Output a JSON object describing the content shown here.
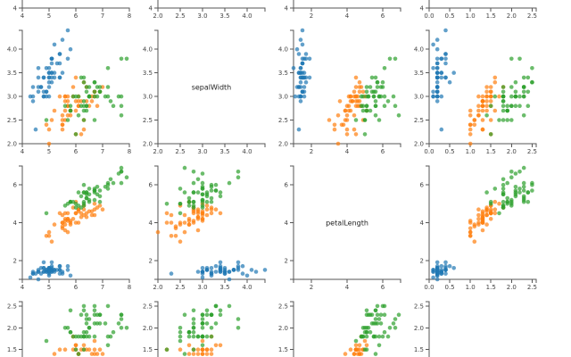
{
  "chart_data": {
    "type": "scatter",
    "title": "",
    "layout": "scatterplot-matrix",
    "grid": false,
    "legend": "none",
    "diagonal_labels": [
      "",
      "sepalWidth",
      "petalLength",
      ""
    ],
    "dimensions": [
      {
        "domain": [
          4,
          8
        ],
        "ticks": [
          4,
          5,
          6,
          7,
          8
        ],
        "tick_labels": [
          "4",
          "5",
          "6",
          "7",
          "8"
        ]
      },
      {
        "domain": [
          2.0,
          4.4
        ],
        "ticks": [
          2.0,
          2.5,
          3.0,
          3.5,
          4.0
        ],
        "tick_labels": [
          "2.0",
          "2.5",
          "3.0",
          "3.5",
          "4.0"
        ]
      },
      {
        "domain": [
          1,
          7
        ],
        "ticks": [
          2,
          4,
          6
        ],
        "tick_labels": [
          "2",
          "4",
          "6"
        ]
      },
      {
        "domain": [
          0,
          2.6
        ],
        "ticks": [
          0.0,
          0.5,
          1.0,
          1.5,
          2.0,
          2.5
        ],
        "tick_labels": [
          "0.0",
          "0.5",
          "1.0",
          "1.5",
          "2.0",
          "2.5"
        ]
      }
    ],
    "series": [
      {
        "color": "#1f77b4",
        "points": [
          [
            5.1,
            3.5,
            1.4,
            0.2
          ],
          [
            4.9,
            3.0,
            1.4,
            0.2
          ],
          [
            4.7,
            3.2,
            1.3,
            0.2
          ],
          [
            4.6,
            3.1,
            1.5,
            0.2
          ],
          [
            5.0,
            3.6,
            1.4,
            0.2
          ],
          [
            5.4,
            3.9,
            1.7,
            0.4
          ],
          [
            4.6,
            3.4,
            1.4,
            0.3
          ],
          [
            5.0,
            3.4,
            1.5,
            0.2
          ],
          [
            4.4,
            2.9,
            1.4,
            0.2
          ],
          [
            4.9,
            3.1,
            1.5,
            0.1
          ],
          [
            5.4,
            3.7,
            1.5,
            0.2
          ],
          [
            4.8,
            3.4,
            1.6,
            0.2
          ],
          [
            4.8,
            3.0,
            1.4,
            0.1
          ],
          [
            4.3,
            3.0,
            1.1,
            0.1
          ],
          [
            5.8,
            4.0,
            1.2,
            0.2
          ],
          [
            5.7,
            4.4,
            1.5,
            0.4
          ],
          [
            5.4,
            3.9,
            1.3,
            0.4
          ],
          [
            5.1,
            3.5,
            1.4,
            0.3
          ],
          [
            5.7,
            3.8,
            1.7,
            0.3
          ],
          [
            5.1,
            3.8,
            1.5,
            0.3
          ],
          [
            5.4,
            3.4,
            1.7,
            0.2
          ],
          [
            5.1,
            3.7,
            1.5,
            0.4
          ],
          [
            4.6,
            3.6,
            1.0,
            0.2
          ],
          [
            5.1,
            3.3,
            1.7,
            0.5
          ],
          [
            4.8,
            3.4,
            1.9,
            0.2
          ],
          [
            5.0,
            3.0,
            1.6,
            0.2
          ],
          [
            5.0,
            3.4,
            1.6,
            0.4
          ],
          [
            5.2,
            3.5,
            1.5,
            0.2
          ],
          [
            5.2,
            3.4,
            1.4,
            0.2
          ],
          [
            4.7,
            3.2,
            1.6,
            0.2
          ],
          [
            4.8,
            3.1,
            1.6,
            0.2
          ],
          [
            5.4,
            3.4,
            1.5,
            0.4
          ],
          [
            5.2,
            4.1,
            1.5,
            0.1
          ],
          [
            5.5,
            4.2,
            1.4,
            0.2
          ],
          [
            4.9,
            3.1,
            1.5,
            0.2
          ],
          [
            5.0,
            3.2,
            1.2,
            0.2
          ],
          [
            5.5,
            3.5,
            1.3,
            0.2
          ],
          [
            4.9,
            3.6,
            1.4,
            0.1
          ],
          [
            4.4,
            3.0,
            1.3,
            0.2
          ],
          [
            5.1,
            3.4,
            1.5,
            0.2
          ],
          [
            5.0,
            3.5,
            1.3,
            0.3
          ],
          [
            4.5,
            2.3,
            1.3,
            0.3
          ],
          [
            4.4,
            3.2,
            1.3,
            0.2
          ],
          [
            5.0,
            3.5,
            1.6,
            0.6
          ],
          [
            5.1,
            3.8,
            1.9,
            0.4
          ],
          [
            4.8,
            3.0,
            1.4,
            0.3
          ],
          [
            5.1,
            3.8,
            1.6,
            0.2
          ],
          [
            4.6,
            3.2,
            1.4,
            0.2
          ],
          [
            5.3,
            3.7,
            1.5,
            0.2
          ],
          [
            5.0,
            3.3,
            1.4,
            0.2
          ]
        ]
      },
      {
        "color": "#ff7f0e",
        "points": [
          [
            7.0,
            3.2,
            4.7,
            1.4
          ],
          [
            6.4,
            3.2,
            4.5,
            1.5
          ],
          [
            6.9,
            3.1,
            4.9,
            1.5
          ],
          [
            5.5,
            2.3,
            4.0,
            1.3
          ],
          [
            6.5,
            2.8,
            4.6,
            1.5
          ],
          [
            5.7,
            2.8,
            4.5,
            1.3
          ],
          [
            6.3,
            3.3,
            4.7,
            1.6
          ],
          [
            4.9,
            2.4,
            3.3,
            1.0
          ],
          [
            6.6,
            2.9,
            4.6,
            1.3
          ],
          [
            5.2,
            2.7,
            3.9,
            1.4
          ],
          [
            5.0,
            2.0,
            3.5,
            1.0
          ],
          [
            5.9,
            3.0,
            4.2,
            1.5
          ],
          [
            6.0,
            2.2,
            4.0,
            1.0
          ],
          [
            6.1,
            2.9,
            4.7,
            1.4
          ],
          [
            5.6,
            2.9,
            3.6,
            1.3
          ],
          [
            6.7,
            3.1,
            4.4,
            1.4
          ],
          [
            5.6,
            3.0,
            4.5,
            1.5
          ],
          [
            5.8,
            2.7,
            4.1,
            1.0
          ],
          [
            6.2,
            2.2,
            4.5,
            1.5
          ],
          [
            5.6,
            2.5,
            3.9,
            1.1
          ],
          [
            5.9,
            3.2,
            4.8,
            1.8
          ],
          [
            6.1,
            2.8,
            4.0,
            1.3
          ],
          [
            6.3,
            2.5,
            4.9,
            1.5
          ],
          [
            6.1,
            2.8,
            4.7,
            1.2
          ],
          [
            6.4,
            2.9,
            4.3,
            1.3
          ],
          [
            6.6,
            3.0,
            4.4,
            1.4
          ],
          [
            6.8,
            2.8,
            4.8,
            1.4
          ],
          [
            6.7,
            3.0,
            5.0,
            1.7
          ],
          [
            6.0,
            2.9,
            4.5,
            1.5
          ],
          [
            5.7,
            2.6,
            3.5,
            1.0
          ],
          [
            5.5,
            2.4,
            3.8,
            1.1
          ],
          [
            5.5,
            2.4,
            3.7,
            1.0
          ],
          [
            5.8,
            2.7,
            3.9,
            1.2
          ],
          [
            6.0,
            2.7,
            5.1,
            1.6
          ],
          [
            5.4,
            3.0,
            4.5,
            1.5
          ],
          [
            6.0,
            3.4,
            4.5,
            1.6
          ],
          [
            6.7,
            3.1,
            4.7,
            1.5
          ],
          [
            6.3,
            2.3,
            4.4,
            1.3
          ],
          [
            5.6,
            3.0,
            4.1,
            1.3
          ],
          [
            5.5,
            2.5,
            4.0,
            1.3
          ],
          [
            5.5,
            2.6,
            4.4,
            1.2
          ],
          [
            6.1,
            3.0,
            4.6,
            1.4
          ],
          [
            5.8,
            2.6,
            4.0,
            1.2
          ],
          [
            5.0,
            2.3,
            3.3,
            1.0
          ],
          [
            5.6,
            2.7,
            4.2,
            1.3
          ],
          [
            5.7,
            3.0,
            4.2,
            1.2
          ],
          [
            5.7,
            2.9,
            4.2,
            1.3
          ],
          [
            6.2,
            2.9,
            4.3,
            1.3
          ],
          [
            5.1,
            2.5,
            3.0,
            1.1
          ],
          [
            5.7,
            2.8,
            4.1,
            1.3
          ]
        ]
      },
      {
        "color": "#2ca02c",
        "points": [
          [
            6.3,
            3.3,
            6.0,
            2.5
          ],
          [
            5.8,
            2.7,
            5.1,
            1.9
          ],
          [
            7.1,
            3.0,
            5.9,
            2.1
          ],
          [
            6.3,
            2.9,
            5.6,
            1.8
          ],
          [
            6.5,
            3.0,
            5.8,
            2.2
          ],
          [
            7.6,
            3.0,
            6.6,
            2.1
          ],
          [
            4.9,
            2.5,
            4.5,
            1.7
          ],
          [
            7.3,
            2.9,
            6.3,
            1.8
          ],
          [
            6.7,
            2.5,
            5.8,
            1.8
          ],
          [
            7.2,
            3.6,
            6.1,
            2.5
          ],
          [
            6.5,
            3.2,
            5.1,
            2.0
          ],
          [
            6.4,
            2.7,
            5.3,
            1.9
          ],
          [
            6.8,
            3.0,
            5.5,
            2.1
          ],
          [
            5.7,
            2.5,
            5.0,
            2.0
          ],
          [
            5.8,
            2.8,
            5.1,
            2.4
          ],
          [
            6.4,
            3.2,
            5.3,
            2.3
          ],
          [
            6.5,
            3.0,
            5.5,
            1.8
          ],
          [
            7.7,
            3.8,
            6.7,
            2.2
          ],
          [
            7.7,
            2.6,
            6.9,
            2.3
          ],
          [
            6.0,
            2.2,
            5.0,
            1.5
          ],
          [
            6.9,
            3.2,
            5.7,
            2.3
          ],
          [
            5.6,
            2.8,
            4.9,
            2.0
          ],
          [
            7.7,
            2.8,
            6.7,
            2.0
          ],
          [
            6.3,
            2.7,
            4.9,
            1.8
          ],
          [
            6.7,
            3.3,
            5.7,
            2.1
          ],
          [
            7.2,
            3.2,
            6.0,
            1.8
          ],
          [
            6.2,
            2.8,
            4.8,
            1.8
          ],
          [
            6.1,
            3.0,
            4.9,
            1.8
          ],
          [
            6.4,
            2.8,
            5.6,
            2.1
          ],
          [
            7.2,
            3.0,
            5.8,
            1.6
          ],
          [
            7.4,
            2.8,
            6.1,
            1.9
          ],
          [
            7.9,
            3.8,
            6.4,
            2.0
          ],
          [
            6.4,
            2.8,
            5.6,
            2.2
          ],
          [
            6.3,
            2.8,
            5.1,
            1.5
          ],
          [
            6.1,
            2.6,
            5.6,
            1.4
          ],
          [
            7.7,
            3.0,
            6.1,
            2.3
          ],
          [
            6.3,
            3.4,
            5.6,
            2.4
          ],
          [
            6.4,
            3.1,
            5.5,
            1.8
          ],
          [
            6.0,
            3.0,
            4.8,
            1.8
          ],
          [
            6.9,
            3.1,
            5.4,
            2.1
          ],
          [
            6.7,
            3.1,
            5.6,
            2.4
          ],
          [
            6.9,
            3.1,
            5.1,
            2.3
          ],
          [
            5.8,
            2.7,
            5.1,
            1.9
          ],
          [
            6.8,
            3.2,
            5.9,
            2.3
          ],
          [
            6.7,
            3.3,
            5.7,
            2.5
          ],
          [
            6.7,
            3.0,
            5.2,
            2.3
          ],
          [
            6.3,
            2.5,
            5.0,
            1.9
          ],
          [
            6.5,
            3.0,
            5.2,
            2.0
          ],
          [
            6.2,
            3.4,
            5.4,
            2.3
          ],
          [
            5.9,
            3.0,
            5.1,
            1.8
          ]
        ]
      }
    ]
  }
}
